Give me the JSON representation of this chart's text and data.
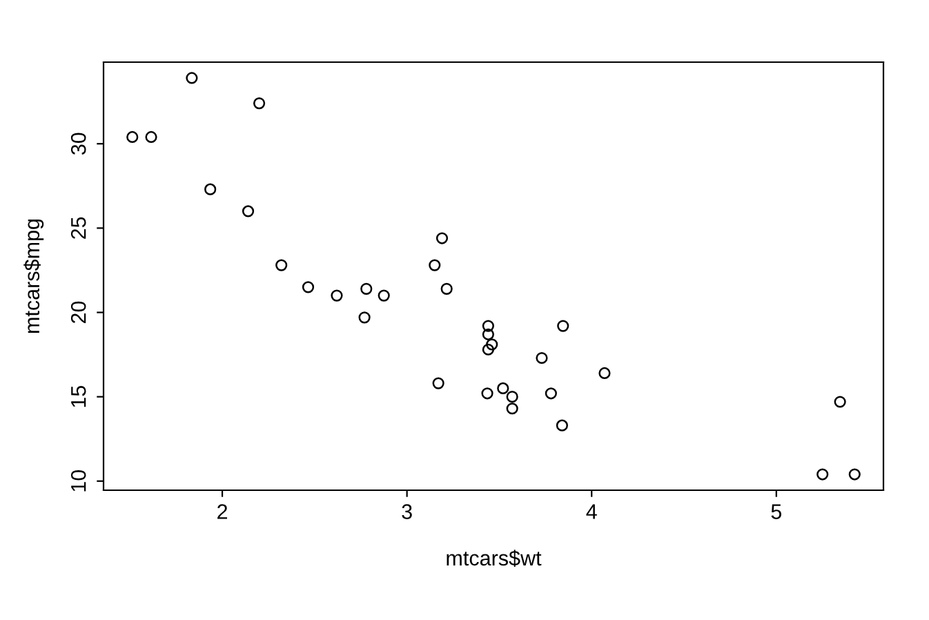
{
  "chart_data": {
    "type": "scatter",
    "xlabel": "mtcars$wt",
    "ylabel": "mtcars$mpg",
    "xlim": [
      1.357,
      5.58
    ],
    "ylim": [
      9.46,
      34.84
    ],
    "xticks": [
      2,
      3,
      4,
      5
    ],
    "yticks": [
      10,
      15,
      20,
      25,
      30
    ],
    "grid": false,
    "marker": "circle",
    "series": [
      {
        "color": "#000000",
        "x": [
          2.62,
          2.875,
          2.32,
          3.215,
          3.44,
          3.46,
          3.57,
          3.19,
          3.15,
          3.44,
          3.44,
          4.07,
          3.73,
          3.78,
          5.25,
          5.424,
          5.345,
          2.2,
          1.615,
          1.835,
          2.465,
          3.52,
          3.435,
          3.84,
          3.845,
          1.935,
          2.14,
          1.513,
          3.17,
          2.77,
          3.57,
          2.78
        ],
        "values": [
          21.0,
          21.0,
          22.8,
          21.4,
          18.7,
          18.1,
          14.3,
          24.4,
          22.8,
          19.2,
          17.8,
          16.4,
          17.3,
          15.2,
          10.4,
          10.4,
          14.7,
          32.4,
          30.4,
          33.9,
          21.5,
          15.5,
          15.2,
          13.3,
          19.2,
          27.3,
          26.0,
          30.4,
          15.8,
          19.7,
          15.0,
          21.4
        ]
      }
    ]
  }
}
